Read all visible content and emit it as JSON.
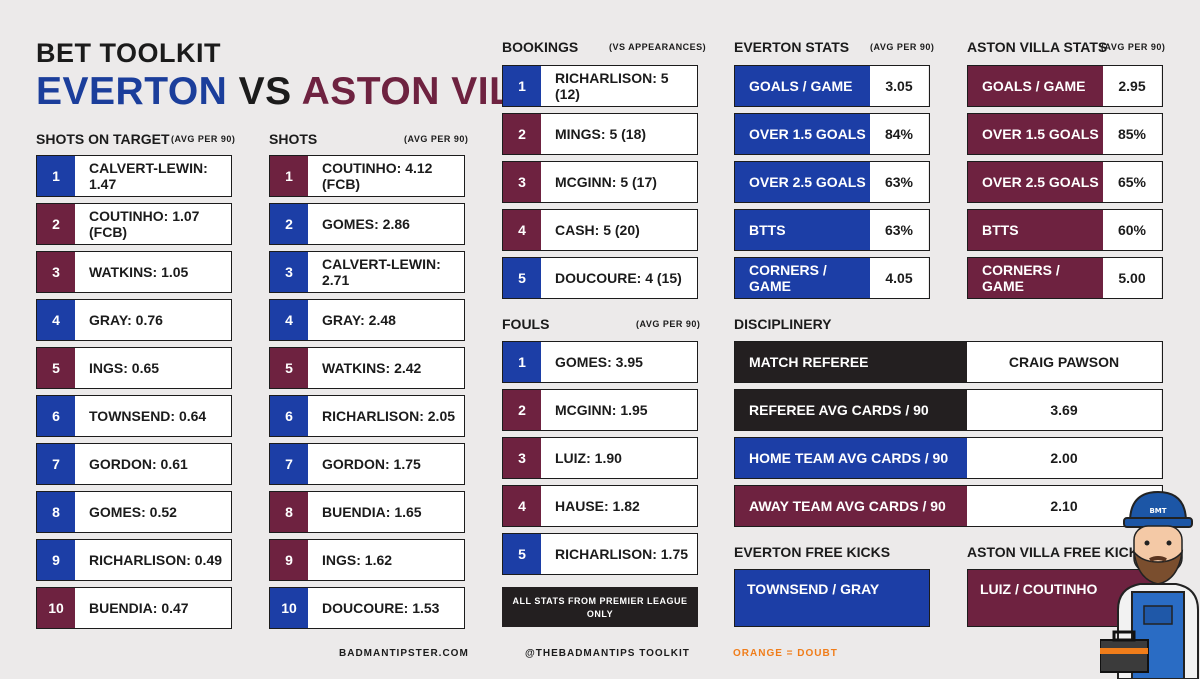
{
  "header": {
    "kit_title": "BET TOOLKIT",
    "home": "EVERTON",
    "vs": "VS",
    "away": "ASTON VILLA"
  },
  "sot": {
    "title": "SHOTS ON TARGET",
    "sub": "(AVG PER 90)",
    "rows": [
      {
        "n": "1",
        "label": "CALVERT-LEWIN: 1.47",
        "team": "blue"
      },
      {
        "n": "2",
        "label": "COUTINHO: 1.07 (FCB)",
        "team": "maroon"
      },
      {
        "n": "3",
        "label": "WATKINS: 1.05",
        "team": "maroon"
      },
      {
        "n": "4",
        "label": "GRAY: 0.76",
        "team": "blue"
      },
      {
        "n": "5",
        "label": "INGS: 0.65",
        "team": "maroon"
      },
      {
        "n": "6",
        "label": "TOWNSEND: 0.64",
        "team": "blue"
      },
      {
        "n": "7",
        "label": "GORDON: 0.61",
        "team": "blue"
      },
      {
        "n": "8",
        "label": "GOMES: 0.52",
        "team": "blue"
      },
      {
        "n": "9",
        "label": "RICHARLISON: 0.49",
        "team": "blue"
      },
      {
        "n": "10",
        "label": "BUENDIA: 0.47",
        "team": "maroon"
      }
    ]
  },
  "shots": {
    "title": "SHOTS",
    "sub": "(AVG PER 90)",
    "rows": [
      {
        "n": "1",
        "label": "COUTINHO: 4.12 (FCB)",
        "team": "maroon"
      },
      {
        "n": "2",
        "label": "GOMES: 2.86",
        "team": "blue"
      },
      {
        "n": "3",
        "label": "CALVERT-LEWIN: 2.71",
        "team": "blue"
      },
      {
        "n": "4",
        "label": "GRAY: 2.48",
        "team": "blue"
      },
      {
        "n": "5",
        "label": "WATKINS: 2.42",
        "team": "maroon"
      },
      {
        "n": "6",
        "label": "RICHARLISON: 2.05",
        "team": "blue"
      },
      {
        "n": "7",
        "label": "GORDON: 1.75",
        "team": "blue"
      },
      {
        "n": "8",
        "label": "BUENDIA: 1.65",
        "team": "maroon"
      },
      {
        "n": "9",
        "label": "INGS: 1.62",
        "team": "maroon"
      },
      {
        "n": "10",
        "label": "DOUCOURE: 1.53",
        "team": "blue"
      }
    ]
  },
  "bookings": {
    "title": "BOOKINGS",
    "sub": "(VS APPEARANCES)",
    "rows": [
      {
        "n": "1",
        "label": "RICHARLISON: 5 (12)",
        "team": "blue"
      },
      {
        "n": "2",
        "label": "MINGS: 5 (18)",
        "team": "maroon"
      },
      {
        "n": "3",
        "label": "MCGINN: 5 (17)",
        "team": "maroon"
      },
      {
        "n": "4",
        "label": "CASH: 5 (20)",
        "team": "maroon"
      },
      {
        "n": "5",
        "label": "DOUCOURE: 4 (15)",
        "team": "blue"
      }
    ]
  },
  "fouls": {
    "title": "FOULS",
    "sub": "(AVG PER 90)",
    "rows": [
      {
        "n": "1",
        "label": "GOMES: 3.95",
        "team": "blue"
      },
      {
        "n": "2",
        "label": "MCGINN: 1.95",
        "team": "maroon"
      },
      {
        "n": "3",
        "label": "LUIZ: 1.90",
        "team": "maroon"
      },
      {
        "n": "4",
        "label": "HAUSE: 1.82",
        "team": "maroon"
      },
      {
        "n": "5",
        "label": "RICHARLISON: 1.75",
        "team": "blue"
      }
    ]
  },
  "note": {
    "line1": "ALL STATS FROM PREMIER LEAGUE",
    "line2": "ONLY"
  },
  "everton_stats": {
    "title": "EVERTON STATS",
    "sub": "(AVG PER 90)",
    "rows": [
      {
        "k": "GOALS / GAME",
        "v": "3.05"
      },
      {
        "k": "OVER 1.5 GOALS",
        "v": "84%"
      },
      {
        "k": "OVER 2.5 GOALS",
        "v": "63%"
      },
      {
        "k": "BTTS",
        "v": "63%"
      },
      {
        "k": "CORNERS / GAME",
        "v": "4.05"
      }
    ]
  },
  "villa_stats": {
    "title": "ASTON VILLA STATS",
    "sub": "(AVG PER 90)",
    "rows": [
      {
        "k": "GOALS / GAME",
        "v": "2.95"
      },
      {
        "k": "OVER 1.5 GOALS",
        "v": "85%"
      },
      {
        "k": "OVER 2.5 GOALS",
        "v": "65%"
      },
      {
        "k": "BTTS",
        "v": "60%"
      },
      {
        "k": "CORNERS / GAME",
        "v": "5.00"
      }
    ]
  },
  "discipline": {
    "title": "DISCIPLINERY",
    "rows": [
      {
        "k": "MATCH REFEREE",
        "v": "CRAIG PAWSON",
        "team": "black"
      },
      {
        "k": "REFEREE AVG CARDS / 90",
        "v": "3.69",
        "team": "black"
      },
      {
        "k": "HOME TEAM AVG CARDS / 90",
        "v": "2.00",
        "team": "blue"
      },
      {
        "k": "AWAY TEAM AVG CARDS / 90",
        "v": "2.10",
        "team": "maroon"
      }
    ]
  },
  "freekicks": {
    "everton_title": "EVERTON FREE KICKS",
    "everton_value": "TOWNSEND / GRAY",
    "villa_title": "ASTON VILLA FREE KICKS",
    "villa_value": "LUIZ / COUTINHO"
  },
  "mascot": {
    "hat_text": "BMT"
  },
  "footer": {
    "site": "BADMANTIPSTER.COM",
    "handle": "@THEBADMANTIPS TOOLKIT",
    "legend": "ORANGE = DOUBT"
  },
  "colors": {
    "everton": "#1c3ea6",
    "villa": "#6e2240",
    "dark": "#231f20",
    "doubt": "#f07d1a"
  }
}
